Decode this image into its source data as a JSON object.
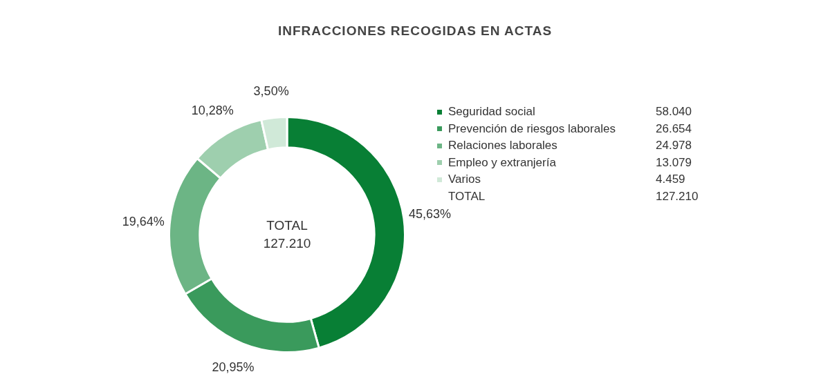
{
  "chart_data": {
    "type": "donut",
    "title": "INFRACCIONES RECOGIDAS EN ACTAS",
    "categories": [
      "Seguridad social",
      "Prevención de riesgos laborales",
      "Relaciones laborales",
      "Empleo y extranjería",
      "Varios"
    ],
    "values": [
      45.63,
      20.95,
      19.64,
      10.28,
      3.5
    ],
    "colors": [
      "#087f35",
      "#3a9a5c",
      "#6cb585",
      "#9ecfae",
      "#d0e9d8"
    ],
    "value_labels": [
      "45,63%",
      "20,95%",
      "19,64%",
      "10,28%",
      "3,50%"
    ],
    "legend": "right",
    "annotations": [
      "TOTAL",
      "127.210",
      "58.040",
      "26.654",
      "24.978",
      "13.079",
      "4.459"
    ]
  }
}
